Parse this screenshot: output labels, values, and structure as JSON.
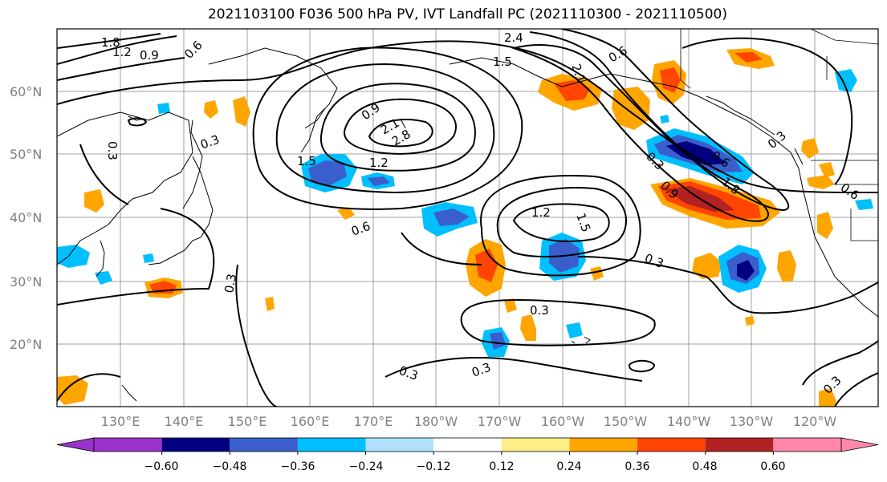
{
  "title": "2021103100 F036 500 hPa PV, IVT Landfall PC (2021110300 - 2021110500)",
  "lat_labels": [
    "60°N",
    "50°N",
    "40°N",
    "30°N",
    "20°N"
  ],
  "lon_labels": [
    "130°E",
    "140°E",
    "150°E",
    "160°E",
    "170°E",
    "180°W",
    "170°W",
    "160°W",
    "150°W",
    "140°W",
    "130°W",
    "120°W"
  ],
  "contour_labels": [
    "1.8",
    "1.2",
    "0.9",
    "0.6",
    "2.4",
    "1.5",
    "2.1",
    "0.6",
    "0.9",
    "2.1",
    "2.8",
    "1.5",
    "1.2",
    "0.3",
    "0.3",
    "0.6",
    "1.2",
    "1.5",
    "0.9",
    "0.3",
    "0.6",
    "1.8",
    "0.3",
    "0.3",
    "0.3",
    "0.3",
    "0.3",
    "0.6",
    "0.3",
    "0.3"
  ],
  "colorbar": {
    "tick_labels": [
      "−0.60",
      "−0.48",
      "−0.36",
      "−0.24",
      "−0.12",
      "0.12",
      "0.24",
      "0.36",
      "0.48",
      "0.60"
    ],
    "colors": [
      "#9933cc",
      "#000080",
      "#3a5fcd",
      "#00bfff",
      "#b0e2ff",
      "#ffffff",
      "#ffee88",
      "#ffa500",
      "#ff4500",
      "#b22222",
      "#ff88aa"
    ]
  }
}
